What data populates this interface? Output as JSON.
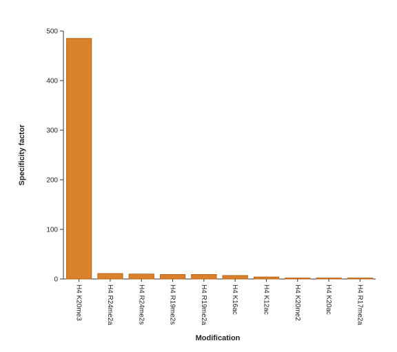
{
  "chart_data": {
    "type": "bar",
    "categories": [
      "H4 K20me3",
      "H4 R24me2a",
      "H4 R24me2s",
      "H4 R19me2s",
      "H4 R19me2a",
      "H4 K16ac",
      "H4 K12ac",
      "H4 K20me2",
      "H4 K20ac",
      "H4 R17me2a"
    ],
    "values": [
      485,
      11,
      10,
      9,
      9,
      7,
      4,
      2,
      2,
      2
    ],
    "color": "#d9822b",
    "x_label": "Modification",
    "y_label": "Specificity factor",
    "ylim": [
      0,
      500
    ],
    "yticks": [
      0,
      100,
      200,
      300,
      400,
      500
    ]
  }
}
